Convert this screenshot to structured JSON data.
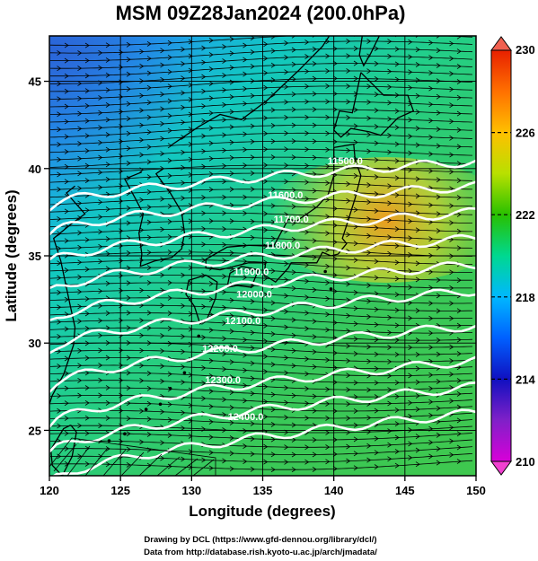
{
  "title": "MSM 09Z28Jan2024 (200.0hPa)",
  "xaxis": {
    "label": "Longitude (degrees)",
    "range": [
      120,
      150
    ],
    "ticks": [
      120,
      125,
      130,
      135,
      140,
      145,
      150
    ],
    "tick_labels": [
      "120",
      "125",
      "130",
      "135",
      "140",
      "145",
      "150"
    ]
  },
  "yaxis": {
    "label": "Latitude  (degrees)",
    "range": [
      22.4,
      47.6
    ],
    "ticks": [
      25,
      30,
      35,
      40,
      45
    ],
    "tick_labels": [
      "25",
      "30",
      "35",
      "40",
      "45"
    ]
  },
  "colorbar": {
    "range": [
      210,
      230
    ],
    "tick_labels": [
      "210",
      "214",
      "218",
      "222",
      "226",
      "230"
    ],
    "colors": [
      "#d800d8",
      "#1010c0",
      "#00b8ff",
      "#00d890",
      "#28c000",
      "#d8e000",
      "#ff8c00",
      "#e82000"
    ]
  },
  "contours": [
    {
      "label": "11500.0",
      "lat_at_150": 40.4
    },
    {
      "label": "11600.0",
      "lat_at_150": 39.0
    },
    {
      "label": "11700.0",
      "lat_at_150": 37.5
    },
    {
      "label": "11800.0",
      "lat_at_150": 36.0
    },
    {
      "label": "11900.0",
      "lat_at_150": 34.5
    },
    {
      "label": "12000.0",
      "lat_at_150": 33.0
    },
    {
      "label": "12100.0",
      "lat_at_150": 31.0
    },
    {
      "label": "12200.0",
      "lat_at_150": 29.0
    },
    {
      "label": "12300.0",
      "lat_at_150": 27.5
    },
    {
      "label": "12400.0",
      "lat_at_150": 26.0
    }
  ],
  "credits": {
    "line1": "Drawing by DCL (https://www.gfd-dennou.org/library/dcl/)",
    "line2": "Data from http://database.rish.kyoto-u.ac.jp/arch/jmadata/"
  }
}
